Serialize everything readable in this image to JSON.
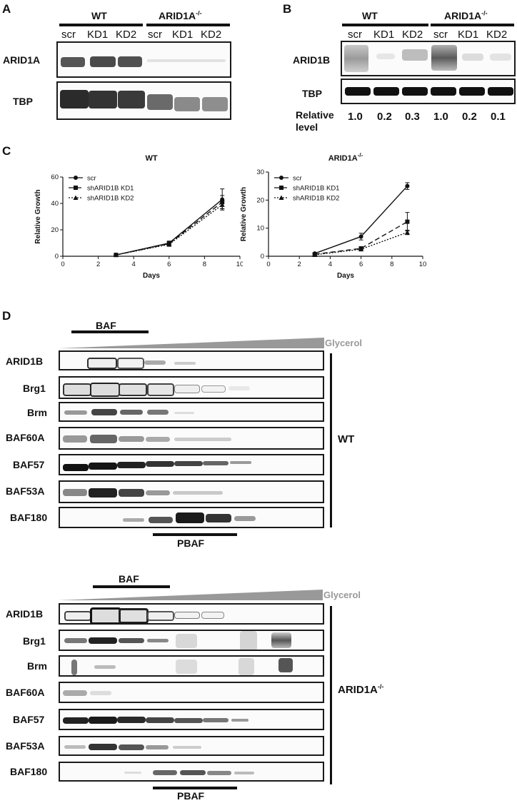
{
  "panel_a": {
    "letter": "A",
    "groups": [
      {
        "label": "WT"
      },
      {
        "label": "ARID1A",
        "sup": "-/-"
      }
    ],
    "lanes": [
      "scr",
      "KD1",
      "KD2",
      "scr",
      "KD1",
      "KD2"
    ],
    "blots": [
      "ARID1A",
      "TBP"
    ]
  },
  "panel_b": {
    "letter": "B",
    "groups": [
      {
        "label": "WT"
      },
      {
        "label": "ARID1A",
        "sup": "-/-"
      }
    ],
    "lanes": [
      "scr",
      "KD1",
      "KD2",
      "scr",
      "KD1",
      "KD2"
    ],
    "blots": [
      "ARID1B",
      "TBP"
    ],
    "relative_label_1": "Relative",
    "relative_label_2": "level",
    "relative_values": [
      "1.0",
      "0.2",
      "0.3",
      "1.0",
      "0.2",
      "0.1"
    ]
  },
  "panel_c": {
    "letter": "C",
    "chart_data": [
      {
        "type": "line",
        "title": "WT",
        "xlabel": "Days",
        "ylabel": "Relative Growth",
        "xlim": [
          0,
          10
        ],
        "ylim": [
          0,
          60
        ],
        "xticks": [
          0,
          2,
          4,
          6,
          8,
          10
        ],
        "yticks": [
          0,
          20,
          40,
          60
        ],
        "legend_position": "top-left",
        "series": [
          {
            "name": "scr",
            "x": [
              3,
              6,
              9
            ],
            "values": [
              1,
              10,
              43
            ],
            "err": [
              0.3,
              1.5,
              8
            ],
            "line": "solid",
            "marker": "circle"
          },
          {
            "name": "shARID1B KD1",
            "x": [
              3,
              6,
              9
            ],
            "values": [
              1,
              9.5,
              41
            ],
            "err": [
              0.3,
              1.5,
              5
            ],
            "line": "dashed",
            "marker": "square"
          },
          {
            "name": "shARID1B KD2",
            "x": [
              3,
              6,
              9
            ],
            "values": [
              1,
              9,
              39
            ],
            "err": [
              0.3,
              1.5,
              3
            ],
            "line": "dotted",
            "marker": "triangle"
          }
        ]
      },
      {
        "type": "line",
        "title": "ARID1A",
        "title_sup": "-/-",
        "xlabel": "Days",
        "ylabel": "Relative Growth",
        "xlim": [
          0,
          10
        ],
        "ylim": [
          0,
          30
        ],
        "xticks": [
          0,
          2,
          4,
          6,
          8,
          10
        ],
        "yticks": [
          0,
          10,
          20,
          30
        ],
        "legend_position": "top-left",
        "series": [
          {
            "name": "scr",
            "x": [
              3,
              6,
              9
            ],
            "values": [
              1,
              7,
              25
            ],
            "err": [
              0.2,
              1.2,
              1.2
            ],
            "line": "solid",
            "marker": "circle"
          },
          {
            "name": "shARID1B KD1",
            "x": [
              3,
              6,
              9
            ],
            "values": [
              0.7,
              2.8,
              12.3
            ],
            "err": [
              0.2,
              0.5,
              3.3
            ],
            "line": "dashed",
            "marker": "square"
          },
          {
            "name": "shARID1B KD2",
            "x": [
              3,
              6,
              9
            ],
            "values": [
              0.5,
              2.5,
              8.5
            ],
            "err": [
              0.2,
              0.4,
              0.8
            ],
            "line": "dotted",
            "marker": "triangle"
          }
        ]
      }
    ]
  },
  "panel_d": {
    "letter": "D",
    "baf_label": "BAF",
    "pbaf_label": "PBAF",
    "glycerol_label": "Glycerol",
    "blots": [
      "ARID1B",
      "Brg1",
      "Brm",
      "BAF60A",
      "BAF57",
      "BAF53A",
      "BAF180"
    ],
    "wt_label": "WT",
    "ko_label": "ARID1A",
    "ko_sup": "-/-"
  },
  "colors": {
    "ink": "#111111",
    "glycerol": "#999999",
    "border": "#1a1a1a"
  }
}
